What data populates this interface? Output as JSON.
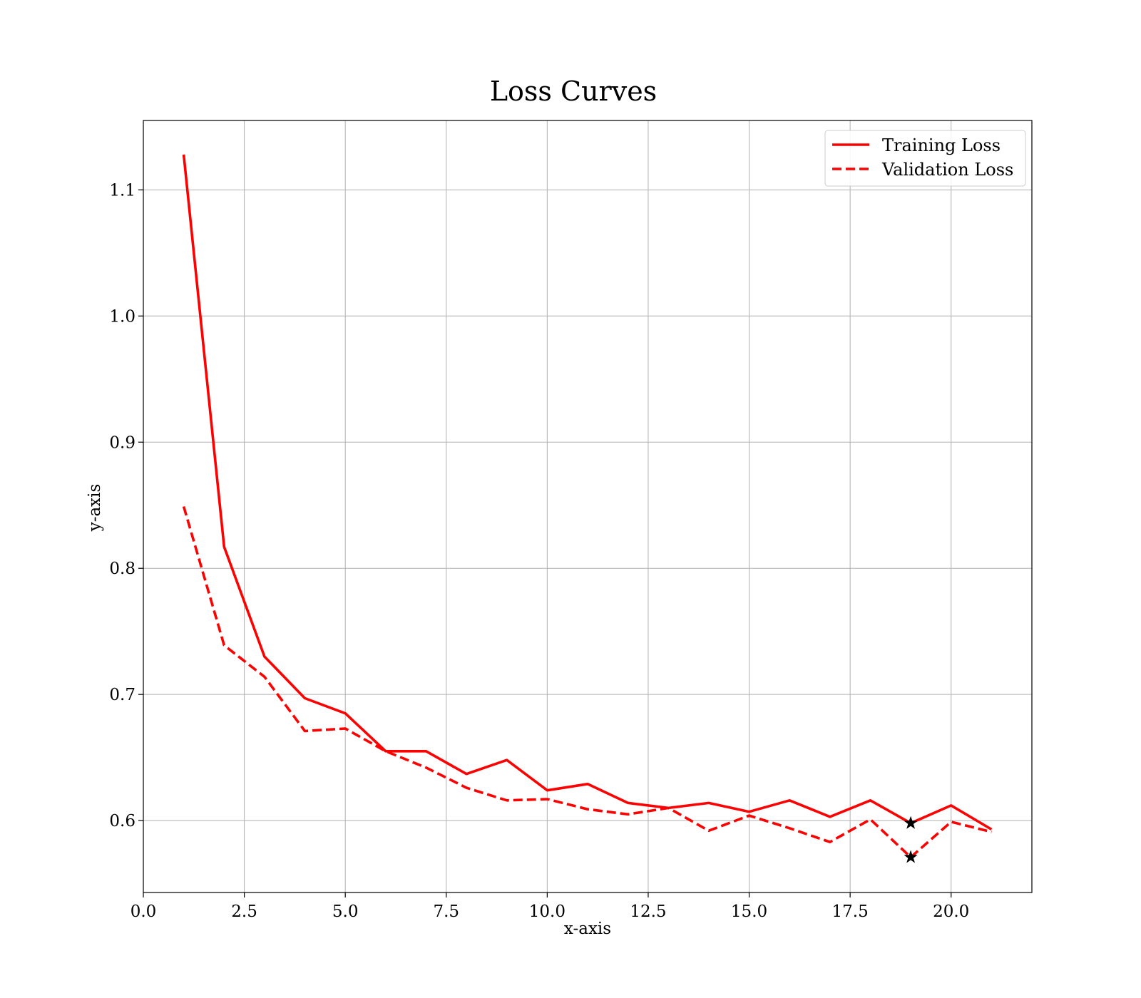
{
  "chart_data": {
    "type": "line",
    "title": "Loss Curves",
    "xlabel": "x-axis",
    "ylabel": "y-axis",
    "xlim": [
      0,
      22
    ],
    "ylim": [
      0.543,
      1.155
    ],
    "xticks": [
      0.0,
      2.5,
      5.0,
      7.5,
      10.0,
      12.5,
      15.0,
      17.5,
      20.0
    ],
    "xtick_labels": [
      "0.0",
      "2.5",
      "5.0",
      "7.5",
      "10.0",
      "12.5",
      "15.0",
      "17.5",
      "20.0"
    ],
    "yticks": [
      0.6,
      0.7,
      0.8,
      0.9,
      1.0,
      1.1
    ],
    "ytick_labels": [
      "0.6",
      "0.7",
      "0.8",
      "0.9",
      "1.0",
      "1.1"
    ],
    "grid": true,
    "legend_position": "top-right",
    "x": [
      1,
      2,
      3,
      4,
      5,
      6,
      7,
      8,
      9,
      10,
      11,
      12,
      13,
      14,
      15,
      16,
      17,
      18,
      19,
      20,
      21
    ],
    "series": [
      {
        "name": "Training Loss",
        "style": "solid",
        "color": "#ff0000",
        "values": [
          1.128,
          0.817,
          0.73,
          0.697,
          0.685,
          0.655,
          0.655,
          0.637,
          0.648,
          0.624,
          0.629,
          0.614,
          0.61,
          0.614,
          0.607,
          0.616,
          0.603,
          0.616,
          0.598,
          0.612,
          0.593
        ]
      },
      {
        "name": "Validation Loss",
        "style": "dashed",
        "color": "#ff0000",
        "values": [
          0.849,
          0.739,
          0.714,
          0.671,
          0.673,
          0.655,
          0.642,
          0.626,
          0.616,
          0.617,
          0.609,
          0.605,
          0.61,
          0.592,
          0.604,
          0.594,
          0.583,
          0.601,
          0.571,
          0.599,
          0.591
        ]
      }
    ],
    "markers": [
      {
        "series": "Training Loss",
        "x": 19,
        "y": 0.598,
        "symbol": "star",
        "color": "#000000"
      },
      {
        "series": "Validation Loss",
        "x": 19,
        "y": 0.571,
        "symbol": "star",
        "color": "#000000"
      }
    ]
  }
}
